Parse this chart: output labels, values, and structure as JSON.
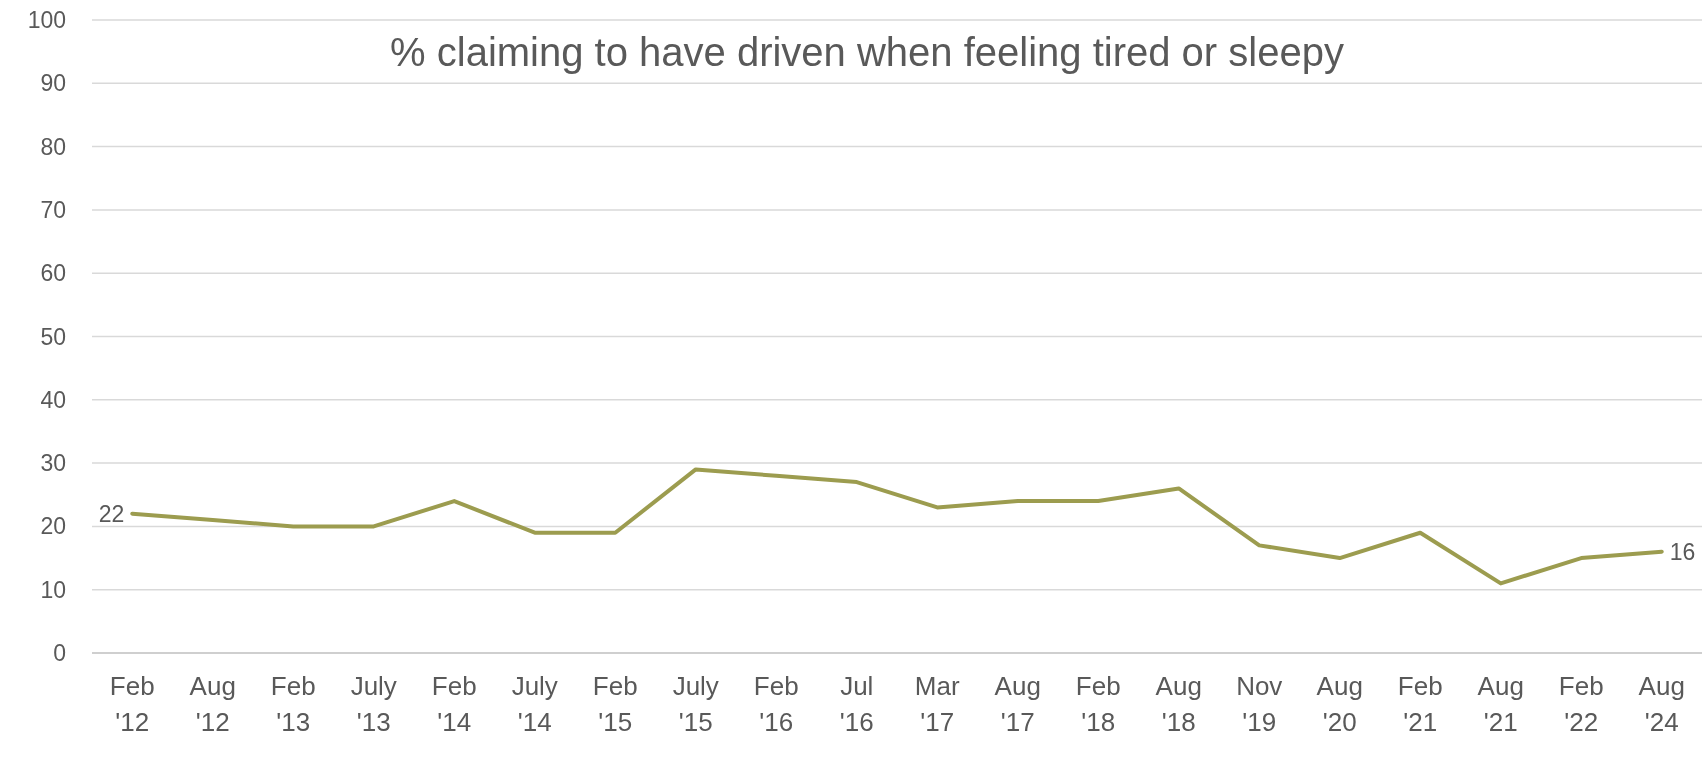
{
  "chart_data": {
    "type": "line",
    "title": "% claiming to have driven when feeling tired or sleepy",
    "categories": [
      "Feb '12",
      "Aug '12",
      "Feb '13",
      "July '13",
      "Feb '14",
      "July '14",
      "Feb '15",
      "July '15",
      "Feb '16",
      "Jul '16",
      "Mar '17",
      "Aug '17",
      "Feb '18",
      "Aug '18",
      "Nov '19",
      "Aug '20",
      "Feb '21",
      "Aug '21",
      "Feb '22",
      "Aug '24"
    ],
    "series": [
      {
        "color": "#9c9c4f",
        "values": [
          22,
          21,
          20,
          20,
          24,
          19,
          19,
          29,
          28,
          27,
          23,
          24,
          24,
          26,
          17,
          15,
          19,
          11,
          15,
          16
        ],
        "value_labels": [
          "22",
          null,
          null,
          null,
          null,
          null,
          null,
          null,
          null,
          null,
          null,
          null,
          null,
          null,
          null,
          null,
          null,
          null,
          null,
          "16"
        ]
      }
    ],
    "ylim": [
      0,
      100
    ],
    "yticks": [
      0,
      10,
      20,
      30,
      40,
      50,
      60,
      70,
      80,
      90,
      100
    ],
    "grid": "y",
    "marker": "none",
    "line_style": "solid"
  }
}
